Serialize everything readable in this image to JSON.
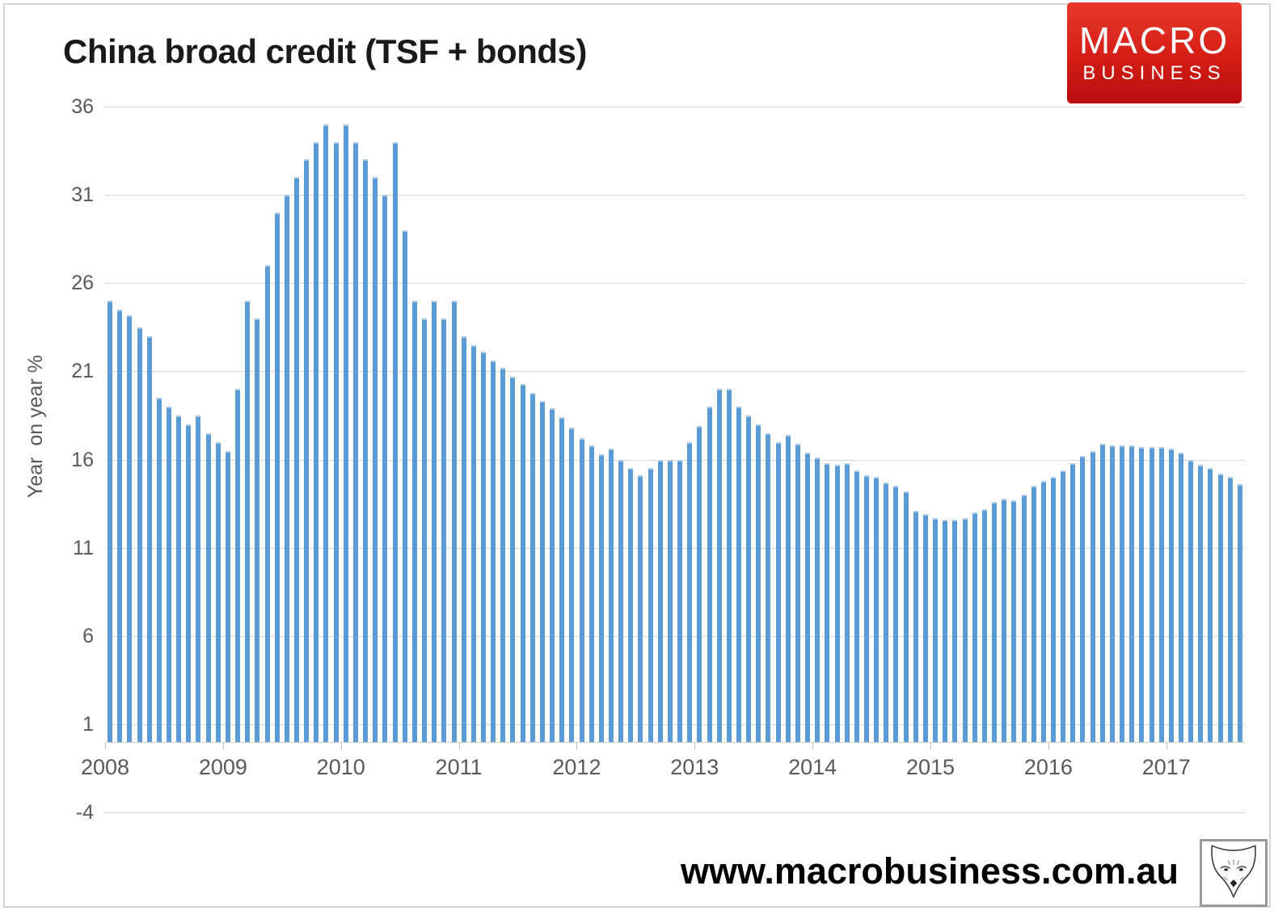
{
  "header": {
    "title": "China broad credit (TSF + bonds)"
  },
  "brand_logo": {
    "line1": "MACRO",
    "line2": "BUSINESS",
    "bg_color_top": "#e9382b",
    "bg_color_bottom": "#b90e0e",
    "text_color": "#ffffff"
  },
  "footer": {
    "website": "www.macrobusiness.com.au",
    "logo_icon": "fox-head-sketch"
  },
  "chart_data": {
    "type": "bar",
    "title": "China broad credit (TSF + bonds)",
    "ylabel": "Year  on year %",
    "xlabel": "",
    "ylim": [
      -4,
      36
    ],
    "y_tick_labels": [
      36,
      31,
      26,
      21,
      16,
      11,
      6,
      1,
      -4
    ],
    "x_tick_labels": [
      "2008",
      "2009",
      "2010",
      "2011",
      "2012",
      "2013",
      "2014",
      "2015",
      "2016",
      "2017"
    ],
    "grid": "horizontal",
    "legend": "none",
    "bar_color": "#5b9bd5",
    "bar_cap_color": "#abc9e9",
    "gridline_color": "#d9d9d9",
    "axis_label_color": "#595959",
    "series_start": "2008-01",
    "series_frequency": "monthly",
    "months_per_year": 12,
    "values": [
      25.0,
      24.5,
      24.2,
      23.5,
      23.0,
      19.5,
      19.0,
      18.5,
      18.0,
      18.5,
      17.5,
      17.0,
      16.5,
      20.0,
      25.0,
      24.0,
      27.0,
      30.0,
      31.0,
      32.0,
      33.0,
      34.0,
      35.0,
      34.0,
      35.0,
      34.0,
      33.0,
      32.0,
      31.0,
      34.0,
      29.0,
      25.0,
      24.0,
      25.0,
      24.0,
      25.0,
      23.0,
      22.5,
      22.1,
      21.6,
      21.2,
      20.7,
      20.3,
      19.8,
      19.3,
      18.9,
      18.4,
      17.8,
      17.2,
      16.8,
      16.3,
      16.6,
      16.0,
      15.5,
      15.1,
      15.5,
      16.0,
      16.0,
      16.0,
      17.0,
      17.9,
      19.0,
      20.0,
      20.0,
      19.0,
      18.5,
      18.0,
      17.5,
      17.0,
      17.4,
      16.9,
      16.4,
      16.1,
      15.8,
      15.7,
      15.8,
      15.4,
      15.1,
      15.0,
      14.7,
      14.5,
      14.2,
      13.1,
      12.9,
      12.7,
      12.6,
      12.6,
      12.7,
      13.0,
      13.2,
      13.6,
      13.8,
      13.7,
      14.0,
      14.5,
      14.8,
      15.0,
      15.4,
      15.8,
      16.2,
      16.5,
      16.9,
      16.8,
      16.8,
      16.8,
      16.7,
      16.7,
      16.7,
      16.6,
      16.4,
      16.0,
      15.7,
      15.5,
      15.2,
      15.0,
      14.6
    ]
  }
}
